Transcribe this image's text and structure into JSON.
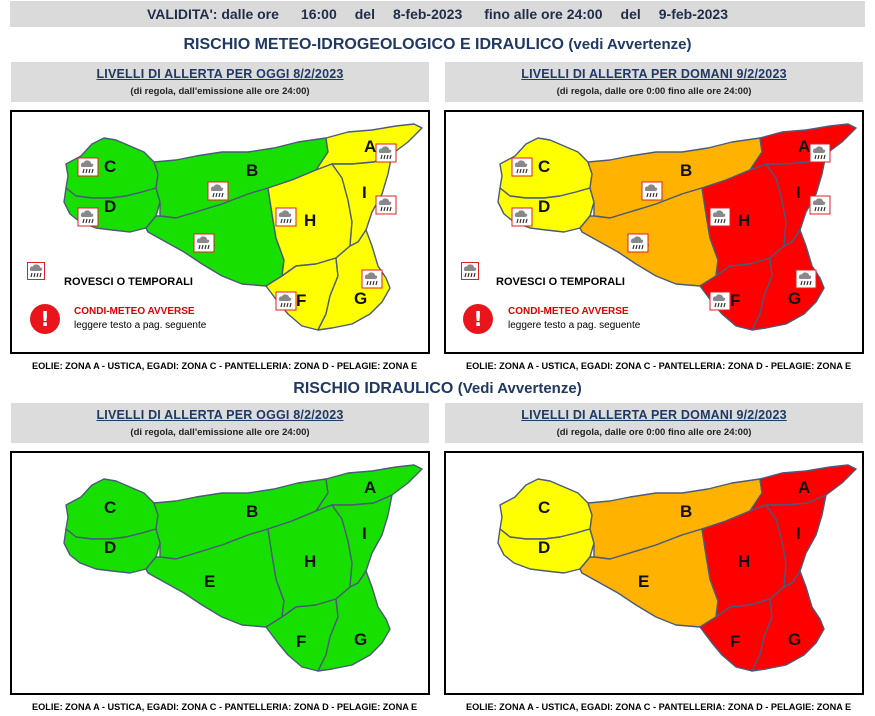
{
  "validity": {
    "label": "VALIDITA': dalle ore",
    "from_time": "16:00",
    "del1": "del",
    "from_date": "8-feb-2023",
    "until_label": "fino alle ore 24:00",
    "del2": "del",
    "to_date": "9-feb-2023"
  },
  "sections": [
    {
      "title": "RISCHIO METEO-IDROGEOLOGICO E IDRAULICO",
      "subtitle": "(vedi Avvertenze)"
    },
    {
      "title": "RISCHIO IDRAULICO",
      "subtitle": "(Vedi Avvertenze)"
    }
  ],
  "panels": {
    "today": {
      "title": "LIVELLI DI ALLERTA PER OGGI 8/2/2023",
      "subtitle": "(di regola, dall'emissione alle ore 24:00)"
    },
    "tomorrow": {
      "title": "LIVELLI DI ALLERTA PER DOMANI 9/2/2023",
      "subtitle": "(di regola, dalle ore 0:00 fino alle ore 24:00)"
    }
  },
  "legend": {
    "storm_label": "ROVESCI O TEMPORALI",
    "adverse_title": "CONDI-METEO AVVERSE",
    "adverse_sub": "leggere testo a pag. seguente",
    "adverse_symbol": "!"
  },
  "footer_note": "EOLIE: ZONA A - USTICA, EGADI: ZONA C - PANTELLERIA: ZONA D - PELAGIE: ZONA E",
  "alert_colors": {
    "green": "#17e000",
    "yellow": "#ffff00",
    "orange": "#ffb300",
    "red": "#ff0000"
  },
  "zone_names": [
    "A",
    "B",
    "C",
    "D",
    "E",
    "F",
    "G",
    "H",
    "I"
  ],
  "maps": {
    "meteo_today": {
      "A": "yellow",
      "B": "green",
      "C": "green",
      "D": "green",
      "E": "green",
      "F": "yellow",
      "G": "yellow",
      "H": "yellow",
      "I": "yellow"
    },
    "meteo_tomorrow": {
      "A": "red",
      "B": "orange",
      "C": "yellow",
      "D": "yellow",
      "E": "orange",
      "F": "red",
      "G": "red",
      "H": "red",
      "I": "red"
    },
    "hydro_today": {
      "A": "green",
      "B": "green",
      "C": "green",
      "D": "green",
      "E": "green",
      "F": "green",
      "G": "green",
      "H": "green",
      "I": "green"
    },
    "hydro_tomorrow": {
      "A": "red",
      "B": "orange",
      "C": "yellow",
      "D": "yellow",
      "E": "orange",
      "F": "red",
      "G": "red",
      "H": "red",
      "I": "red"
    }
  },
  "icons": {
    "storm": "thunderstorm-rain-icon",
    "warning": "exclamation-icon"
  }
}
